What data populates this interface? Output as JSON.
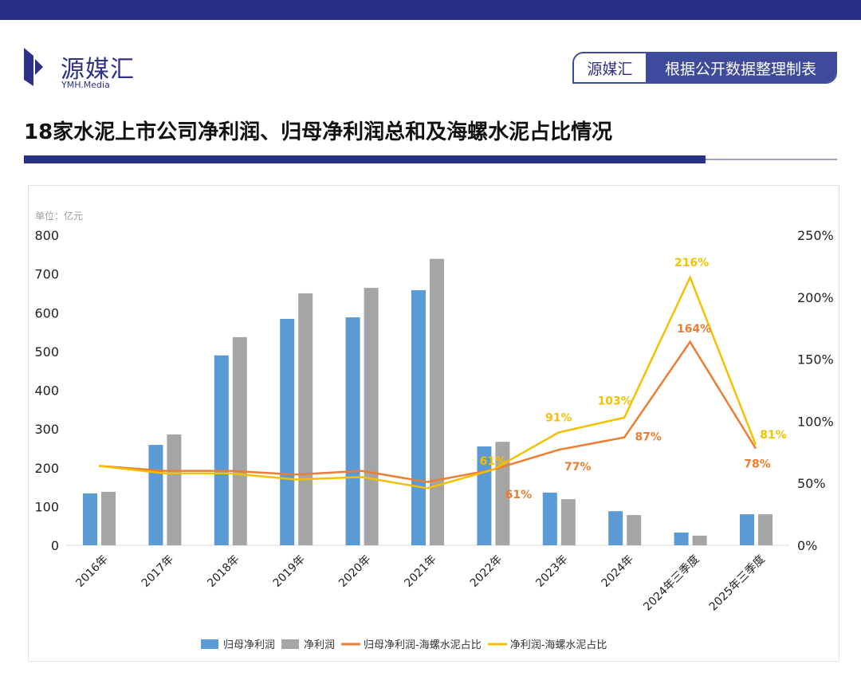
{
  "header": {
    "logo_cn": "源媒汇",
    "logo_en": "YMH.Media",
    "badge_brand": "源媒汇",
    "badge_text": "根据公开数据整理制表",
    "title": "18家水泥上市公司净利润、归母净利润总和及海螺水泥占比情况"
  },
  "colors": {
    "brand": "#2a2f86",
    "blue": "#5b9bd5",
    "gray": "#a5a5a5",
    "orange": "#ed7d31",
    "yellow": "#f5c000"
  },
  "chart_data": {
    "type": "bar+line",
    "unit_label": "单位：亿元",
    "categories": [
      "2016年",
      "2017年",
      "2018年",
      "2019年",
      "2020年",
      "2021年",
      "2022年",
      "2023年",
      "2024年",
      "2024年三季度",
      "2025年三季度"
    ],
    "y_left": {
      "range": [
        0,
        800
      ],
      "ticks": [
        "0",
        "100",
        "200",
        "300",
        "400",
        "500",
        "600",
        "700",
        "800"
      ]
    },
    "y_right": {
      "range": [
        0,
        250
      ],
      "ticks": [
        "0%",
        "50%",
        "100%",
        "150%",
        "200%",
        "250%"
      ]
    },
    "grid": false,
    "legend_position": "bottom",
    "bars": [
      {
        "name": "归母净利润",
        "color": "#5b9bd5",
        "values": [
          134,
          259,
          490,
          584,
          588,
          658,
          255,
          136,
          88,
          33,
          80
        ]
      },
      {
        "name": "净利润",
        "color": "#a5a5a5",
        "values": [
          138,
          286,
          537,
          650,
          664,
          739,
          267,
          119,
          78,
          25,
          80
        ]
      }
    ],
    "lines": [
      {
        "name": "归母净利润-海螺水泥占比",
        "color": "#ed7d31",
        "values": [
          64,
          60,
          60,
          57,
          60,
          51,
          61,
          77,
          87,
          164,
          78
        ],
        "labels": [
          null,
          null,
          null,
          null,
          null,
          null,
          "61%",
          "77%",
          "87%",
          "164%",
          "78%"
        ]
      },
      {
        "name": "净利润-海螺水泥占比",
        "color": "#f5c000",
        "values": [
          64,
          58,
          58,
          53,
          55,
          46,
          61,
          91,
          103,
          216,
          81
        ],
        "labels": [
          null,
          null,
          null,
          null,
          null,
          null,
          "61%",
          "91%",
          "103%",
          "216%",
          "81%"
        ]
      }
    ]
  }
}
